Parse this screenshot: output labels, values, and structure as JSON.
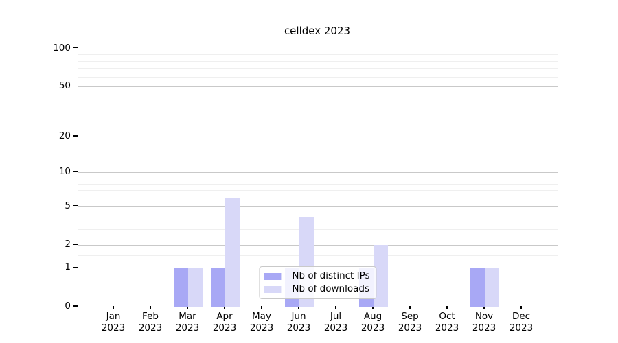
{
  "chart_data": {
    "type": "bar",
    "title": "celldex 2023",
    "categories": [
      "Jan 2023",
      "Feb 2023",
      "Mar 2023",
      "Apr 2023",
      "May 2023",
      "Jun 2023",
      "Jul 2023",
      "Aug 2023",
      "Sep 2023",
      "Oct 2023",
      "Nov 2023",
      "Dec 2023"
    ],
    "series": [
      {
        "name": "Nb of distinct IPs",
        "color": "#a8a8f5",
        "values": [
          0,
          0,
          1,
          1,
          0,
          1,
          0,
          1,
          0,
          0,
          1,
          0
        ]
      },
      {
        "name": "Nb of downloads",
        "color": "#d8d8f8",
        "values": [
          0,
          0,
          1,
          6,
          0,
          4,
          0,
          2,
          0,
          0,
          1,
          0
        ]
      }
    ],
    "xlabel": "",
    "ylabel": "",
    "y_axis": {
      "scale": "log1p",
      "ticks": [
        0,
        1,
        2,
        5,
        10,
        20,
        50,
        100
      ],
      "minor_gridlines": [
        1.5,
        3,
        4,
        6,
        7,
        8,
        9,
        30,
        40,
        60,
        70,
        80,
        90
      ],
      "max": 110
    },
    "legend": {
      "position": "lower center",
      "entries": [
        "Nb of distinct IPs",
        "Nb of downloads"
      ]
    },
    "grid": true,
    "colors": {
      "major_grid": "#c9c9c9",
      "minor_grid": "#efefef",
      "axis": "#000000",
      "background": "#ffffff"
    }
  }
}
